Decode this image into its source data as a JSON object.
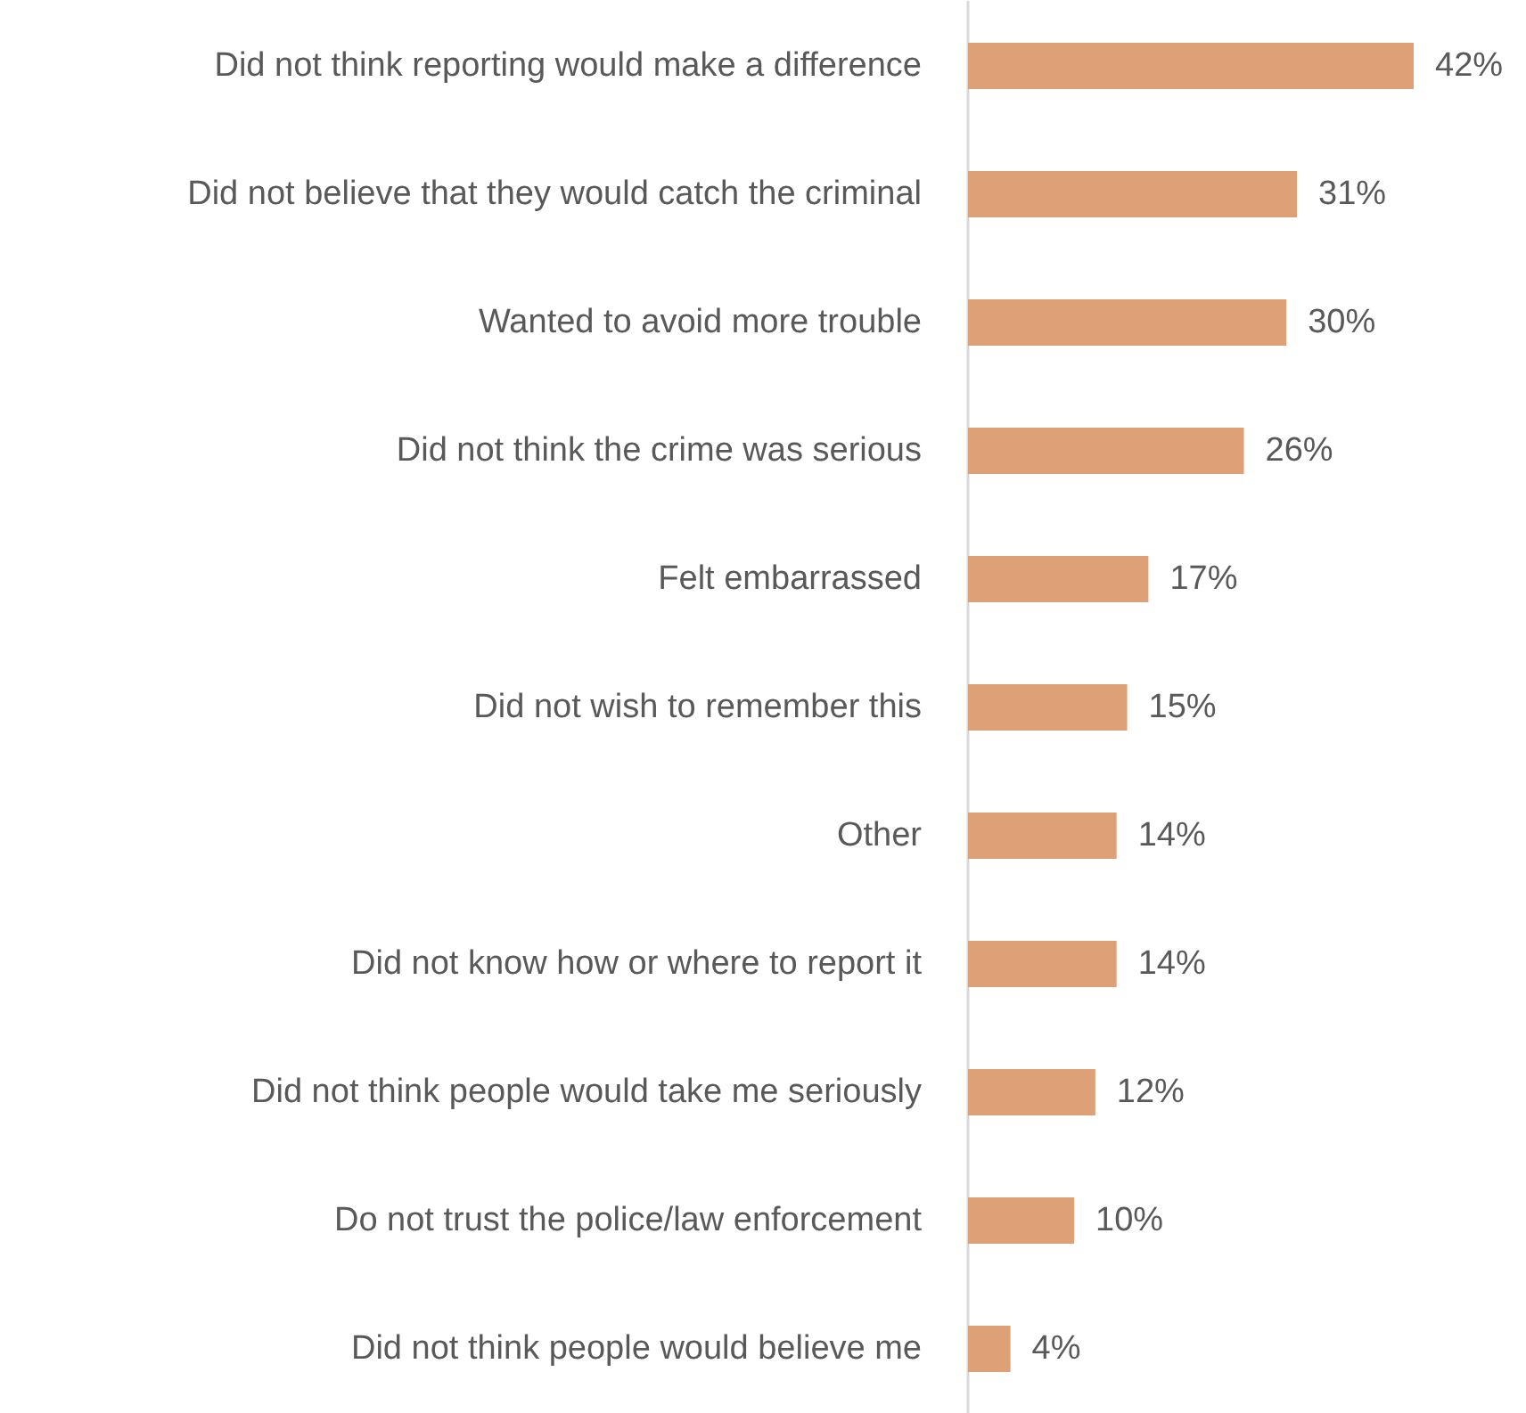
{
  "chart_data": {
    "type": "bar",
    "orientation": "horizontal",
    "categories": [
      "Did not think reporting would make a difference",
      "Did not believe that they would catch the criminal",
      "Wanted to avoid more trouble",
      "Did not think the crime was serious",
      "Felt embarrassed",
      "Did not wish to remember this",
      "Other",
      "Did not know how or where to report it",
      "Did not think people would take me seriously",
      "Do not trust the police/law enforcement",
      "Did not think people would believe me"
    ],
    "values": [
      42,
      31,
      30,
      26,
      17,
      15,
      14,
      14,
      12,
      10,
      4
    ],
    "value_labels": [
      "42%",
      "31%",
      "30%",
      "26%",
      "17%",
      "15%",
      "14%",
      "14%",
      "12%",
      "10%",
      "4%"
    ],
    "color": "#dda077"
  }
}
